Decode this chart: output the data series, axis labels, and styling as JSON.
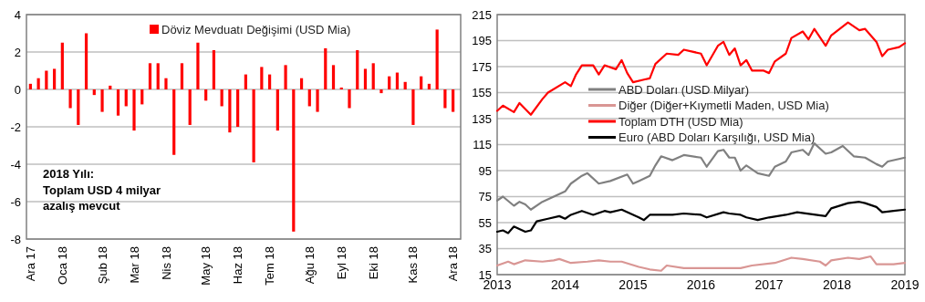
{
  "chart_data": [
    {
      "type": "bar",
      "categories": [
        "Ara 17",
        null,
        null,
        null,
        "Oca 18",
        null,
        null,
        null,
        null,
        "Şub 18",
        null,
        null,
        null,
        "Mar 18",
        null,
        null,
        null,
        "Nis 18",
        null,
        null,
        null,
        null,
        "May 18",
        null,
        null,
        null,
        "Haz 18",
        null,
        null,
        null,
        "Tem 18",
        null,
        null,
        null,
        null,
        "Ağu 18",
        null,
        null,
        null,
        "Eyl 18",
        null,
        null,
        null,
        "Eki 18",
        null,
        null,
        null,
        null,
        "Kas 18",
        null,
        null,
        null,
        null,
        "Ara 18"
      ],
      "series": [
        {
          "name": "Döviz Mevduatı Değişimi (USD Mia)",
          "color": "#ff0000",
          "values": [
            0.3,
            0.6,
            1.0,
            1.1,
            2.5,
            -1.0,
            -1.9,
            3.0,
            -0.3,
            -1.2,
            0.2,
            -1.4,
            -0.9,
            -2.2,
            -0.8,
            1.4,
            1.4,
            0.6,
            -3.5,
            1.4,
            -1.9,
            2.5,
            -0.6,
            2.1,
            -0.9,
            -2.3,
            -2.0,
            0.8,
            -3.9,
            1.2,
            0.8,
            -2.2,
            1.3,
            -7.6,
            0.6,
            -0.9,
            -1.2,
            2.2,
            1.3,
            0.1,
            -1.0,
            2.1,
            1.1,
            1.4,
            -0.2,
            0.7,
            0.9,
            0.4,
            -1.9,
            0.7,
            0.3,
            3.2,
            -1.0,
            -1.2
          ]
        }
      ],
      "ylim": [
        -8,
        4
      ],
      "yticks": [
        -8,
        -6,
        -4,
        -2,
        0,
        2,
        4
      ],
      "grid": "y",
      "legend": "top",
      "annotations": [
        "2018 Yılı:\nToplam USD 4 milyar\nazalış mevcut"
      ]
    },
    {
      "type": "line",
      "xlim": [
        "2013",
        "2019"
      ],
      "xticks": [
        "2013",
        "2014",
        "2015",
        "2016",
        "2017",
        "2018",
        "2019"
      ],
      "ylim": [
        15,
        215
      ],
      "yticks": [
        15,
        35,
        55,
        75,
        95,
        115,
        135,
        155,
        175,
        195,
        215
      ],
      "grid": "y",
      "legend": "left",
      "series": [
        {
          "name": "ABD Doları (USD Milyar)",
          "color": "#808080",
          "x": [
            "2013-01",
            "2013-02",
            "2013-04",
            "2013-05",
            "2013-06",
            "2013-07",
            "2013-09",
            "2013-11",
            "2014-01",
            "2014-02",
            "2014-04",
            "2014-05",
            "2014-07",
            "2014-09",
            "2014-12",
            "2015-01",
            "2015-02",
            "2015-04",
            "2015-05",
            "2015-06",
            "2015-08",
            "2015-10",
            "2016-01",
            "2016-02",
            "2016-04",
            "2016-05",
            "2016-06",
            "2016-07",
            "2016-08",
            "2016-09",
            "2016-11",
            "2017-01",
            "2017-02",
            "2017-04",
            "2017-05",
            "2017-07",
            "2017-08",
            "2017-09",
            "2017-11",
            "2017-12",
            "2018-02",
            "2018-04",
            "2018-06",
            "2018-08",
            "2018-09",
            "2018-10",
            "2019-01"
          ],
          "values": [
            72,
            75,
            68,
            71,
            69,
            65,
            71,
            75,
            79,
            85,
            91,
            93,
            85,
            87,
            92,
            85,
            87,
            91,
            99,
            106,
            103,
            107,
            105,
            98,
            110,
            111,
            105,
            105,
            95,
            99,
            93,
            91,
            98,
            102,
            109,
            111,
            107,
            116,
            108,
            109,
            114,
            106,
            105,
            100,
            98,
            102,
            105
          ]
        },
        {
          "name": "Diğer (Diğer+Kıymetli Maden, USD Mia)",
          "color": "#d99694",
          "x": [
            "2013-01",
            "2013-03",
            "2013-04",
            "2013-06",
            "2013-09",
            "2013-11",
            "2013-12",
            "2014-02",
            "2014-05",
            "2014-07",
            "2014-09",
            "2014-11",
            "2015-02",
            "2015-04",
            "2015-06",
            "2015-07",
            "2015-10",
            "2016-01",
            "2016-04",
            "2016-08",
            "2016-10",
            "2017-02",
            "2017-05",
            "2017-07",
            "2017-10",
            "2017-11",
            "2017-12",
            "2018-03",
            "2018-05",
            "2018-07",
            "2018-08",
            "2018-11",
            "2019-01"
          ],
          "values": [
            22,
            25,
            23,
            26,
            25,
            26,
            27,
            24,
            25,
            26,
            25,
            25,
            21,
            19,
            18,
            22,
            20,
            20,
            20,
            20,
            22,
            24,
            28,
            27,
            25,
            22,
            26,
            28,
            27,
            29,
            23,
            23,
            24
          ]
        },
        {
          "name": "Toplam DTH (USD Mia)",
          "color": "#ff0000",
          "x": [
            "2013-01",
            "2013-02",
            "2013-04",
            "2013-05",
            "2013-07",
            "2013-09",
            "2013-10",
            "2014-01",
            "2014-02",
            "2014-03",
            "2014-04",
            "2014-06",
            "2014-07",
            "2014-08",
            "2014-10",
            "2014-11",
            "2014-12",
            "2015-01",
            "2015-03",
            "2015-04",
            "2015-05",
            "2015-07",
            "2015-09",
            "2015-10",
            "2016-01",
            "2016-02",
            "2016-04",
            "2016-05",
            "2016-06",
            "2016-07",
            "2016-08",
            "2016-09",
            "2016-10",
            "2016-12",
            "2017-01",
            "2017-02",
            "2017-04",
            "2017-05",
            "2017-07",
            "2017-08",
            "2017-09",
            "2017-11",
            "2017-12",
            "2018-03",
            "2018-05",
            "2018-06",
            "2018-08",
            "2018-09",
            "2018-10",
            "2018-12",
            "2019-01"
          ],
          "values": [
            141,
            145,
            140,
            147,
            138,
            150,
            155,
            163,
            160,
            169,
            176,
            176,
            169,
            176,
            173,
            180,
            170,
            163,
            165,
            166,
            177,
            185,
            184,
            188,
            185,
            176,
            191,
            194,
            184,
            189,
            176,
            180,
            172,
            172,
            170,
            179,
            185,
            197,
            202,
            196,
            204,
            191,
            199,
            209,
            203,
            204,
            194,
            183,
            188,
            190,
            193
          ]
        },
        {
          "name": "Euro (ABD Doları Karşılığı, USD Mia)",
          "color": "#000000",
          "x": [
            "2013-01",
            "2013-02",
            "2013-03",
            "2013-04",
            "2013-06",
            "2013-07",
            "2013-08",
            "2013-10",
            "2013-12",
            "2014-01",
            "2014-02",
            "2014-04",
            "2014-06",
            "2014-08",
            "2014-09",
            "2014-11",
            "2015-02",
            "2015-03",
            "2015-04",
            "2015-08",
            "2015-10",
            "2016-01",
            "2016-02",
            "2016-05",
            "2016-06",
            "2016-08",
            "2016-09",
            "2016-11",
            "2017-01",
            "2017-04",
            "2017-06",
            "2017-11",
            "2017-12",
            "2018-03",
            "2018-05",
            "2018-06",
            "2018-08",
            "2018-09",
            "2018-11",
            "2019-01"
          ],
          "values": [
            48,
            49,
            47,
            52,
            48,
            49,
            56,
            58,
            60,
            58,
            61,
            64,
            61,
            64,
            63,
            65,
            59,
            57,
            61,
            61,
            62,
            61,
            59,
            63,
            62,
            61,
            59,
            57,
            59,
            61,
            63,
            60,
            66,
            70,
            71,
            70,
            67,
            63,
            64,
            65
          ]
        }
      ]
    }
  ]
}
